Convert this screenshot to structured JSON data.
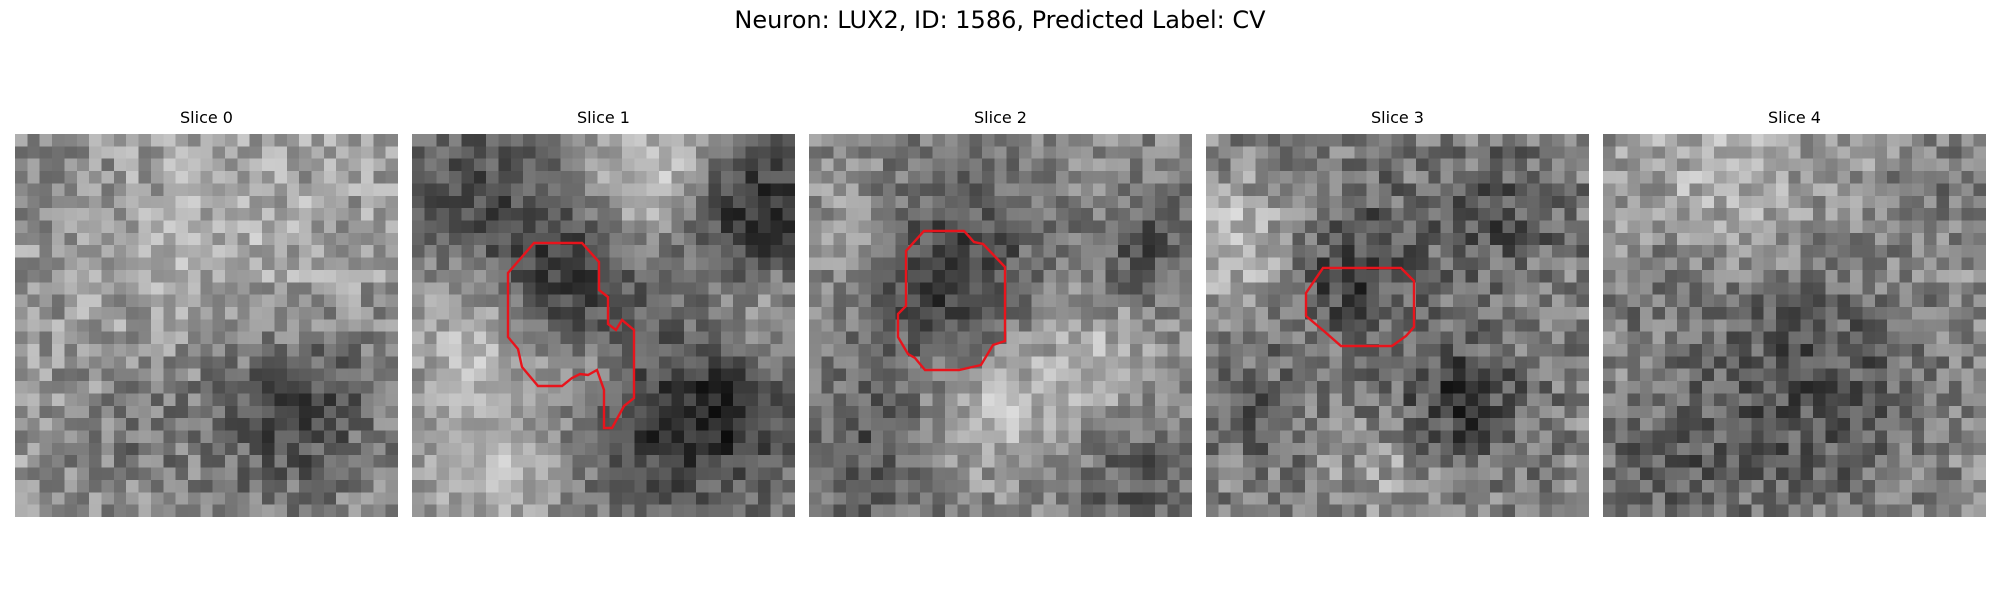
{
  "figure": {
    "title": "Neuron: LUX2, ID: 1586, Predicted Label: CV",
    "outline_color": "#e8141c"
  },
  "slices": [
    {
      "title": "Slice 0",
      "has_outline": false
    },
    {
      "title": "Slice 1",
      "has_outline": true
    },
    {
      "title": "Slice 2",
      "has_outline": true
    },
    {
      "title": "Slice 3",
      "has_outline": true
    },
    {
      "title": "Slice 4",
      "has_outline": false
    }
  ]
}
